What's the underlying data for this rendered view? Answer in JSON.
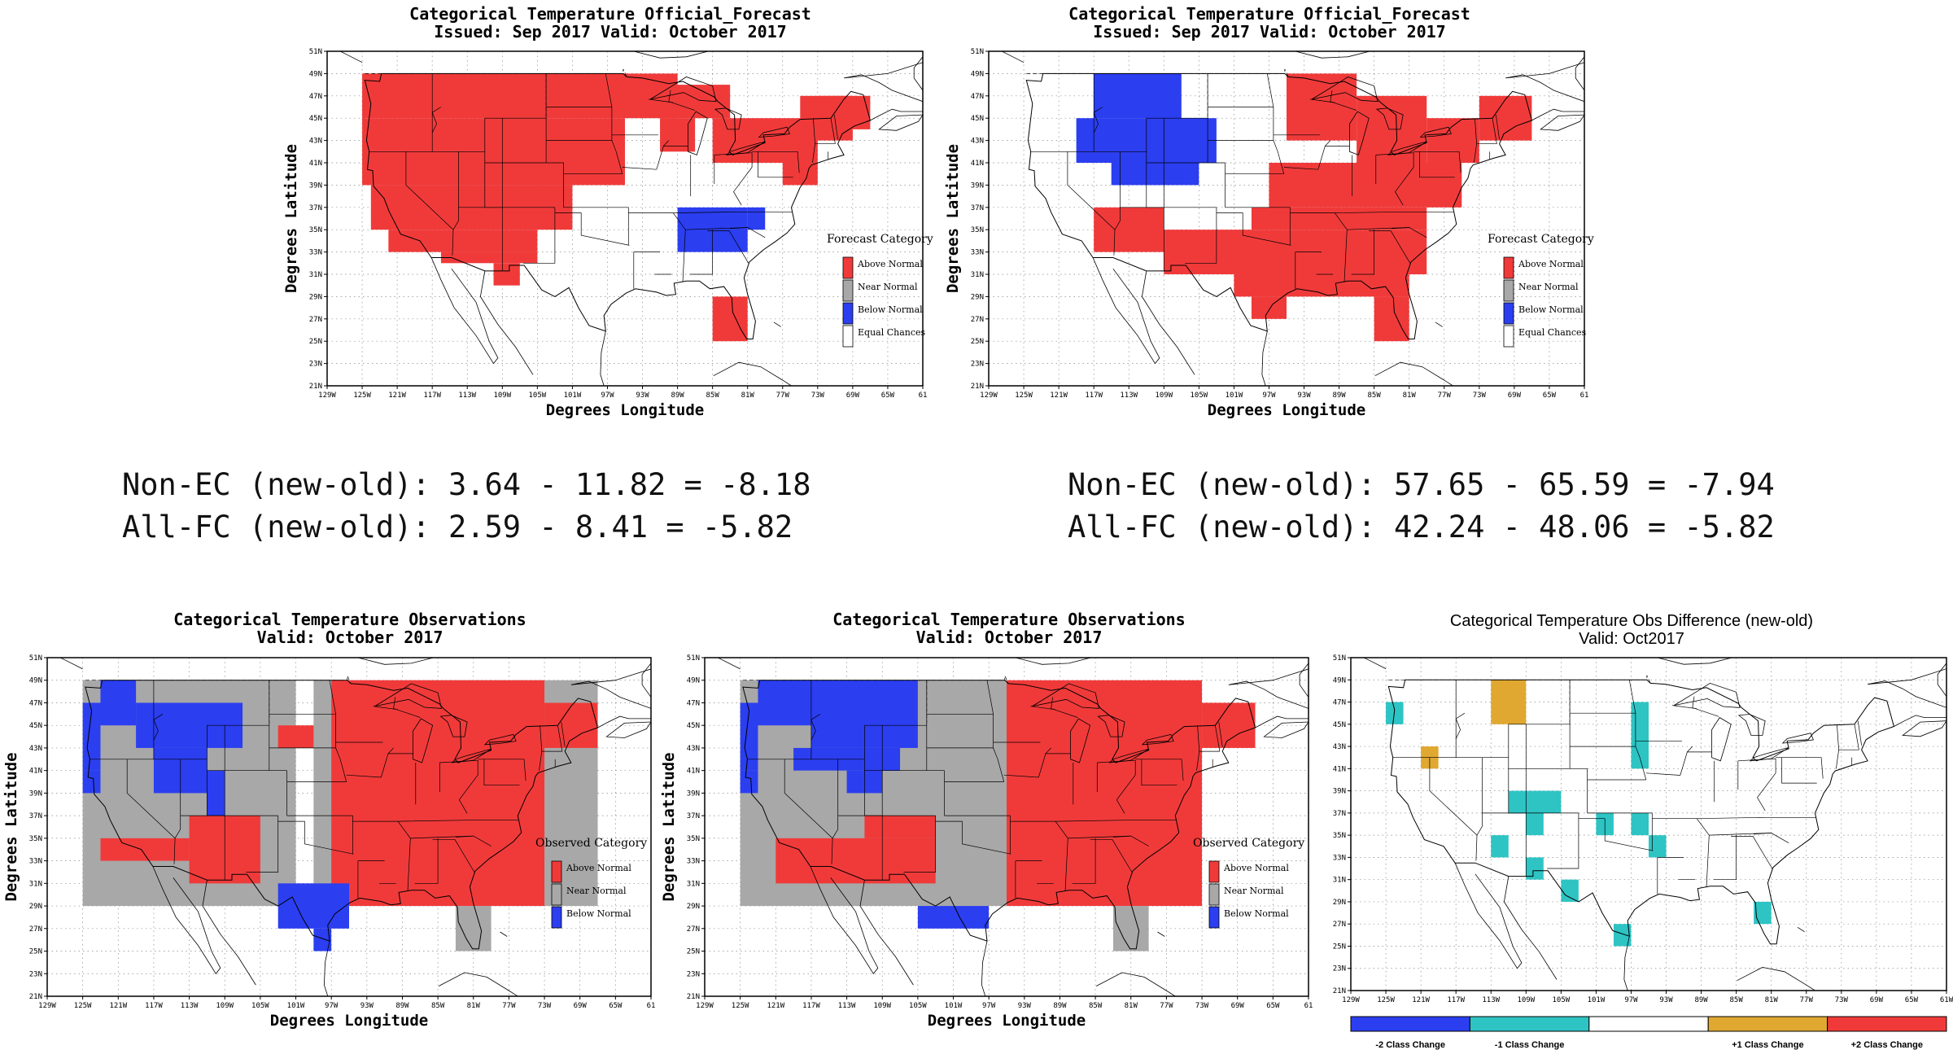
{
  "colors": {
    "above": "#f03a3a",
    "near": "#a8a8a8",
    "below": "#2b3ef0",
    "equal": "#ffffff",
    "minus2": "#2b3ef0",
    "minus1": "#2ec4c4",
    "zero": "#ffffff",
    "plus1": "#e0a830",
    "plus2": "#f03a3a"
  },
  "axes": {
    "lat_ticks": [
      "51N",
      "49N",
      "47N",
      "45N",
      "43N",
      "41N",
      "39N",
      "37N",
      "35N",
      "33N",
      "31N",
      "29N",
      "27N",
      "25N",
      "23N",
      "21N"
    ],
    "lon_ticks": [
      "129W",
      "125W",
      "121W",
      "117W",
      "113W",
      "109W",
      "105W",
      "101W",
      "97W",
      "93W",
      "89W",
      "85W",
      "81W",
      "77W",
      "73W",
      "69W",
      "65W",
      "61"
    ],
    "lon_ticks_diff": [
      "129W",
      "125W",
      "121W",
      "117W",
      "113W",
      "109W",
      "105W",
      "101W",
      "97W",
      "93W",
      "89W",
      "85W",
      "81W",
      "77W",
      "73W",
      "69W",
      "65W",
      "61W"
    ],
    "xlabel": "Degrees Longitude",
    "ylabel": "Degrees Latitude"
  },
  "panels": [
    {
      "id": "fc-old",
      "title_line1": "Categorical Temperature Official_Forecast",
      "title_line2": "Issued: Sep 2017 Valid: October 2017",
      "legend_title": "Forecast Category",
      "legend_items": [
        "Above Normal",
        "Near Normal",
        "Below Normal",
        "Equal Chances"
      ],
      "cells": [
        {
          "lon0": -125,
          "lon1": -89,
          "lat0": 45,
          "lat1": 49,
          "cat": "above"
        },
        {
          "lon0": -125,
          "lon1": -95,
          "lat0": 39,
          "lat1": 45,
          "cat": "above"
        },
        {
          "lon0": -124,
          "lon1": -101,
          "lat0": 35,
          "lat1": 39,
          "cat": "above"
        },
        {
          "lon0": -122,
          "lon1": -105,
          "lat0": 33,
          "lat1": 35,
          "cat": "above"
        },
        {
          "lon0": -116,
          "lon1": -105,
          "lat0": 32,
          "lat1": 33,
          "cat": "above"
        },
        {
          "lon0": -110,
          "lon1": -107,
          "lat0": 30,
          "lat1": 32,
          "cat": "above"
        },
        {
          "lon0": -91,
          "lon1": -83,
          "lat0": 45,
          "lat1": 48,
          "cat": "above"
        },
        {
          "lon0": -91,
          "lon1": -87,
          "lat0": 42,
          "lat1": 45,
          "cat": "above"
        },
        {
          "lon0": -85,
          "lon1": -73,
          "lat0": 41,
          "lat1": 45,
          "cat": "above"
        },
        {
          "lon0": -75,
          "lon1": -69,
          "lat0": 43,
          "lat1": 47,
          "cat": "above"
        },
        {
          "lon0": -73,
          "lon1": -67,
          "lat0": 44,
          "lat1": 47,
          "cat": "above"
        },
        {
          "lon0": -77,
          "lon1": -73,
          "lat0": 39,
          "lat1": 41,
          "cat": "above"
        },
        {
          "lon0": -85,
          "lon1": -81,
          "lat0": 25,
          "lat1": 29,
          "cat": "above"
        },
        {
          "lon0": -89,
          "lon1": -81,
          "lat0": 33,
          "lat1": 37,
          "cat": "below"
        },
        {
          "lon0": -81,
          "lon1": -79,
          "lat0": 35,
          "lat1": 37,
          "cat": "below"
        }
      ]
    },
    {
      "id": "fc-new",
      "title_line1": "Categorical Temperature Official_Forecast",
      "title_line2": "Issued: Sep 2017 Valid: October 2017",
      "legend_title": "Forecast Category",
      "legend_items": [
        "Above Normal",
        "Near Normal",
        "Below Normal",
        "Equal Chances"
      ],
      "cells": [
        {
          "lon0": -117,
          "lon1": -107,
          "lat0": 45,
          "lat1": 49,
          "cat": "below"
        },
        {
          "lon0": -119,
          "lon1": -103,
          "lat0": 41,
          "lat1": 45,
          "cat": "below"
        },
        {
          "lon0": -115,
          "lon1": -105,
          "lat0": 39,
          "lat1": 41,
          "cat": "below"
        },
        {
          "lon0": -95,
          "lon1": -87,
          "lat0": 43,
          "lat1": 49,
          "cat": "above"
        },
        {
          "lon0": -87,
          "lon1": -79,
          "lat0": 41,
          "lat1": 47,
          "cat": "above"
        },
        {
          "lon0": -79,
          "lon1": -73,
          "lat0": 41,
          "lat1": 45,
          "cat": "above"
        },
        {
          "lon0": -73,
          "lon1": -67,
          "lat0": 43,
          "lat1": 47,
          "cat": "above"
        },
        {
          "lon0": -97,
          "lon1": -75,
          "lat0": 37,
          "lat1": 41,
          "cat": "above"
        },
        {
          "lon0": -99,
          "lon1": -79,
          "lat0": 35,
          "lat1": 37,
          "cat": "above"
        },
        {
          "lon0": -117,
          "lon1": -109,
          "lat0": 33,
          "lat1": 37,
          "cat": "above"
        },
        {
          "lon0": -109,
          "lon1": -79,
          "lat0": 31,
          "lat1": 35,
          "cat": "above"
        },
        {
          "lon0": -101,
          "lon1": -81,
          "lat0": 29,
          "lat1": 31,
          "cat": "above"
        },
        {
          "lon0": -99,
          "lon1": -95,
          "lat0": 27,
          "lat1": 29,
          "cat": "above"
        },
        {
          "lon0": -85,
          "lon1": -81,
          "lat0": 25,
          "lat1": 29,
          "cat": "above"
        }
      ]
    },
    {
      "id": "obs-old",
      "title_line1": "Categorical Temperature Observations",
      "title_line2": "Valid: October 2017",
      "legend_title": "Observed Category",
      "legend_items": [
        "Above Normal",
        "Near Normal",
        "Below Normal"
      ],
      "cells": [
        {
          "lon0": -125,
          "lon1": -101,
          "lat0": 29,
          "lat1": 49,
          "cat": "near"
        },
        {
          "lon0": -123,
          "lon1": -119,
          "lat0": 45,
          "lat1": 49,
          "cat": "below"
        },
        {
          "lon0": -125,
          "lon1": -123,
          "lat0": 41,
          "lat1": 47,
          "cat": "below"
        },
        {
          "lon0": -119,
          "lon1": -107,
          "lat0": 43,
          "lat1": 47,
          "cat": "below"
        },
        {
          "lon0": -117,
          "lon1": -111,
          "lat0": 39,
          "lat1": 43,
          "cat": "below"
        },
        {
          "lon0": -111,
          "lon1": -109,
          "lat0": 35,
          "lat1": 41,
          "cat": "below"
        },
        {
          "lon0": -125,
          "lon1": -123,
          "lat0": 39,
          "lat1": 41,
          "cat": "below"
        },
        {
          "lon0": -103,
          "lon1": -97,
          "lat0": 43,
          "lat1": 45,
          "cat": "above"
        },
        {
          "lon0": -99,
          "lon1": -67,
          "lat0": 29,
          "lat1": 49,
          "cat": "near"
        },
        {
          "lon0": -97,
          "lon1": -73,
          "lat0": 29,
          "lat1": 49,
          "cat": "above"
        },
        {
          "lon0": -73,
          "lon1": -67,
          "lat0": 43,
          "lat1": 47,
          "cat": "above"
        },
        {
          "lon0": -123,
          "lon1": -113,
          "lat0": 33,
          "lat1": 35,
          "cat": "above"
        },
        {
          "lon0": -113,
          "lon1": -105,
          "lat0": 31,
          "lat1": 37,
          "cat": "above"
        },
        {
          "lon0": -103,
          "lon1": -95,
          "lat0": 27,
          "lat1": 31,
          "cat": "below"
        },
        {
          "lon0": -99,
          "lon1": -97,
          "lat0": 25,
          "lat1": 27,
          "cat": "below"
        },
        {
          "lon0": -83,
          "lon1": -79,
          "lat0": 25,
          "lat1": 29,
          "cat": "near"
        }
      ]
    },
    {
      "id": "obs-new",
      "title_line1": "Categorical Temperature Observations",
      "title_line2": "Valid: October 2017",
      "legend_title": "Observed Category",
      "legend_items": [
        "Above Normal",
        "Near Normal",
        "Below Normal"
      ],
      "cells": [
        {
          "lon0": -125,
          "lon1": -95,
          "lat0": 29,
          "lat1": 49,
          "cat": "near"
        },
        {
          "lon0": -123,
          "lon1": -117,
          "lat0": 45,
          "lat1": 49,
          "cat": "below"
        },
        {
          "lon0": -125,
          "lon1": -123,
          "lat0": 41,
          "lat1": 47,
          "cat": "below"
        },
        {
          "lon0": -117,
          "lon1": -105,
          "lat0": 43,
          "lat1": 49,
          "cat": "below"
        },
        {
          "lon0": -119,
          "lon1": -107,
          "lat0": 41,
          "lat1": 43,
          "cat": "below"
        },
        {
          "lon0": -113,
          "lon1": -109,
          "lat0": 39,
          "lat1": 41,
          "cat": "below"
        },
        {
          "lon0": -125,
          "lon1": -123,
          "lat0": 39,
          "lat1": 41,
          "cat": "below"
        },
        {
          "lon0": -95,
          "lon1": -73,
          "lat0": 29,
          "lat1": 49,
          "cat": "above"
        },
        {
          "lon0": -73,
          "lon1": -67,
          "lat0": 43,
          "lat1": 47,
          "cat": "above"
        },
        {
          "lon0": -121,
          "lon1": -103,
          "lat0": 31,
          "lat1": 35,
          "cat": "above"
        },
        {
          "lon0": -111,
          "lon1": -103,
          "lat0": 35,
          "lat1": 37,
          "cat": "above"
        },
        {
          "lon0": -105,
          "lon1": -97,
          "lat0": 27,
          "lat1": 29,
          "cat": "below"
        },
        {
          "lon0": -83,
          "lon1": -79,
          "lat0": 25,
          "lat1": 29,
          "cat": "near"
        }
      ]
    },
    {
      "id": "obs-diff",
      "title_line1": "Categorical Temperature Obs Difference (new-old)",
      "title_line2": "Valid: Oct2017",
      "colorbar_labels": [
        "-2 Class Change",
        "-1 Class Change",
        "+1 Class Change",
        "+2 Class Change"
      ],
      "cells": [
        {
          "lon0": -125,
          "lon1": -123,
          "lat0": 45,
          "lat1": 47,
          "cat": "minus1"
        },
        {
          "lon0": -113,
          "lon1": -109,
          "lat0": 45,
          "lat1": 49,
          "cat": "plus1"
        },
        {
          "lon0": -121,
          "lon1": -119,
          "lat0": 41,
          "lat1": 43,
          "cat": "plus1"
        },
        {
          "lon0": -97,
          "lon1": -95,
          "lat0": 41,
          "lat1": 47,
          "cat": "minus1"
        },
        {
          "lon0": -111,
          "lon1": -105,
          "lat0": 37,
          "lat1": 39,
          "cat": "minus1"
        },
        {
          "lon0": -109,
          "lon1": -107,
          "lat0": 35,
          "lat1": 37,
          "cat": "minus1"
        },
        {
          "lon0": -101,
          "lon1": -99,
          "lat0": 35,
          "lat1": 37,
          "cat": "minus1"
        },
        {
          "lon0": -97,
          "lon1": -95,
          "lat0": 35,
          "lat1": 37,
          "cat": "minus1"
        },
        {
          "lon0": -113,
          "lon1": -111,
          "lat0": 33,
          "lat1": 35,
          "cat": "minus1"
        },
        {
          "lon0": -95,
          "lon1": -93,
          "lat0": 33,
          "lat1": 35,
          "cat": "minus1"
        },
        {
          "lon0": -109,
          "lon1": -107,
          "lat0": 31,
          "lat1": 33,
          "cat": "minus1"
        },
        {
          "lon0": -105,
          "lon1": -103,
          "lat0": 29,
          "lat1": 31,
          "cat": "minus1"
        },
        {
          "lon0": -99,
          "lon1": -97,
          "lat0": 25,
          "lat1": 27,
          "cat": "minus1"
        },
        {
          "lon0": -83,
          "lon1": -81,
          "lat0": 27,
          "lat1": 29,
          "cat": "minus1"
        }
      ]
    }
  ],
  "scores": {
    "left_line1": "Non-EC (new-old): 3.64 - 11.82 = -8.18",
    "left_line2": "All-FC (new-old): 2.59 - 8.41 = -5.82",
    "right_line1": "Non-EC (new-old): 57.65 - 65.59 = -7.94",
    "right_line2": "All-FC (new-old): 42.24 - 48.06 = -5.82"
  }
}
